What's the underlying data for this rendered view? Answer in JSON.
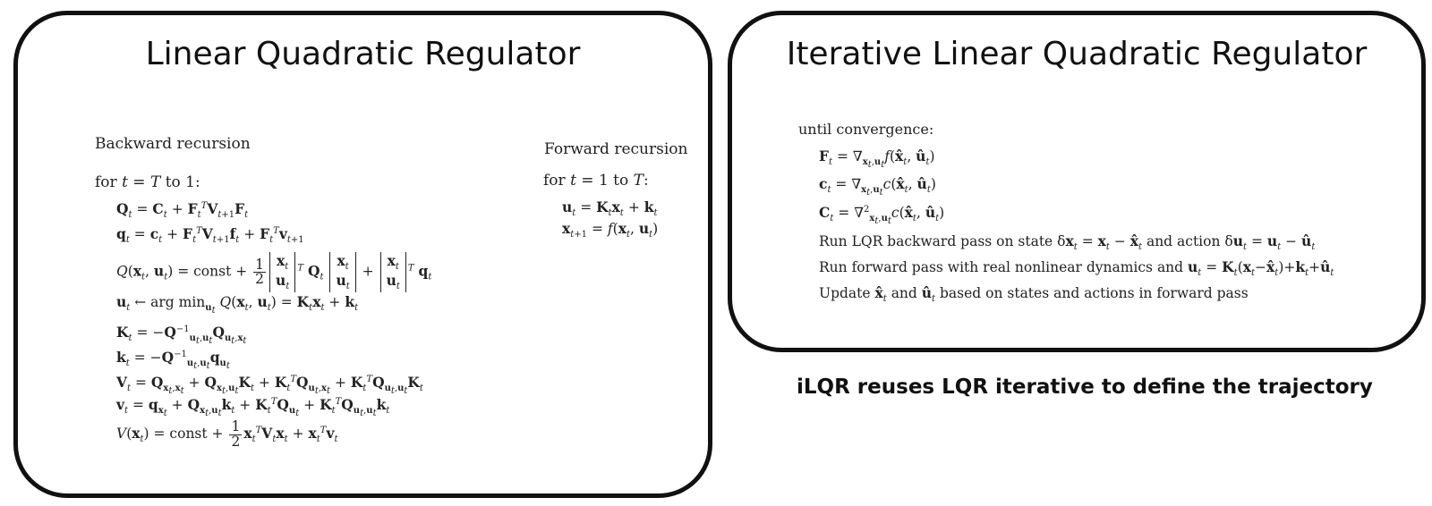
{
  "lqr": {
    "title": "Linear Quadratic Regulator",
    "backward_label": "Backward recursion",
    "forward_label": "Forward recursion",
    "backward_loop": "for t = T to 1:",
    "forward_loop": "for t = 1 to T:",
    "backward_equations": [
      "Q_t = C_t + F_t^T V_{t+1} F_t",
      "q_t = c_t + F_t^T V_{t+1} f_t + F_t^T v_{t+1}",
      "Q(x_t, u_t) = const + 1/2 [x_t; u_t]^T Q_t [x_t; u_t] + [x_t; u_t]^T q_t",
      "u_t ← arg min_{u_t} Q(x_t, u_t) = K_t x_t + k_t",
      "K_t = −Q_{u_t,u_t}^{-1} Q_{u_t,x_t}",
      "k_t = −Q_{u_t,u_t}^{-1} q_{u_t}",
      "V_t = Q_{x_t,x_t} + Q_{x_t,u_t} K_t + K_t^T Q_{u_t,x_t} + K_t^T Q_{u_t,u_t} K_t",
      "v_t = q_{x_t} + Q_{x_t,u_t} k_t + K_t^T Q_{u_t} + K_t^T Q_{u_t,u_t} k_t",
      "V(x_t) = const + 1/2 x_t^T V_t x_t + x_t^T v_t"
    ],
    "forward_equations": [
      "u_t = K_t x_t + k_t",
      "x_{t+1} = f(x_t, u_t)"
    ]
  },
  "ilqr": {
    "title": "Iterative Linear Quadratic Regulator",
    "loop": "until convergence:",
    "steps": [
      "F_t = ∇_{x_t,u_t} f(x̂_t, û_t)",
      "c_t = ∇_{x_t,u_t} c(x̂_t, û_t)",
      "C_t = ∇²_{x_t,u_t} c(x̂_t, û_t)",
      "Run LQR backward pass on state δx_t = x_t − x̂_t and action δu_t = u_t − û_t",
      "Run forward pass with real nonlinear dynamics and u_t = K_t(x_t − x̂_t) + k_t + û_t",
      "Update x̂_t and û_t based on states and actions in forward pass"
    ]
  },
  "caption": "iLQR reuses LQR iterative to define the trajectory",
  "colors": {
    "arrow": "#b5cf94",
    "border": "#111111"
  }
}
